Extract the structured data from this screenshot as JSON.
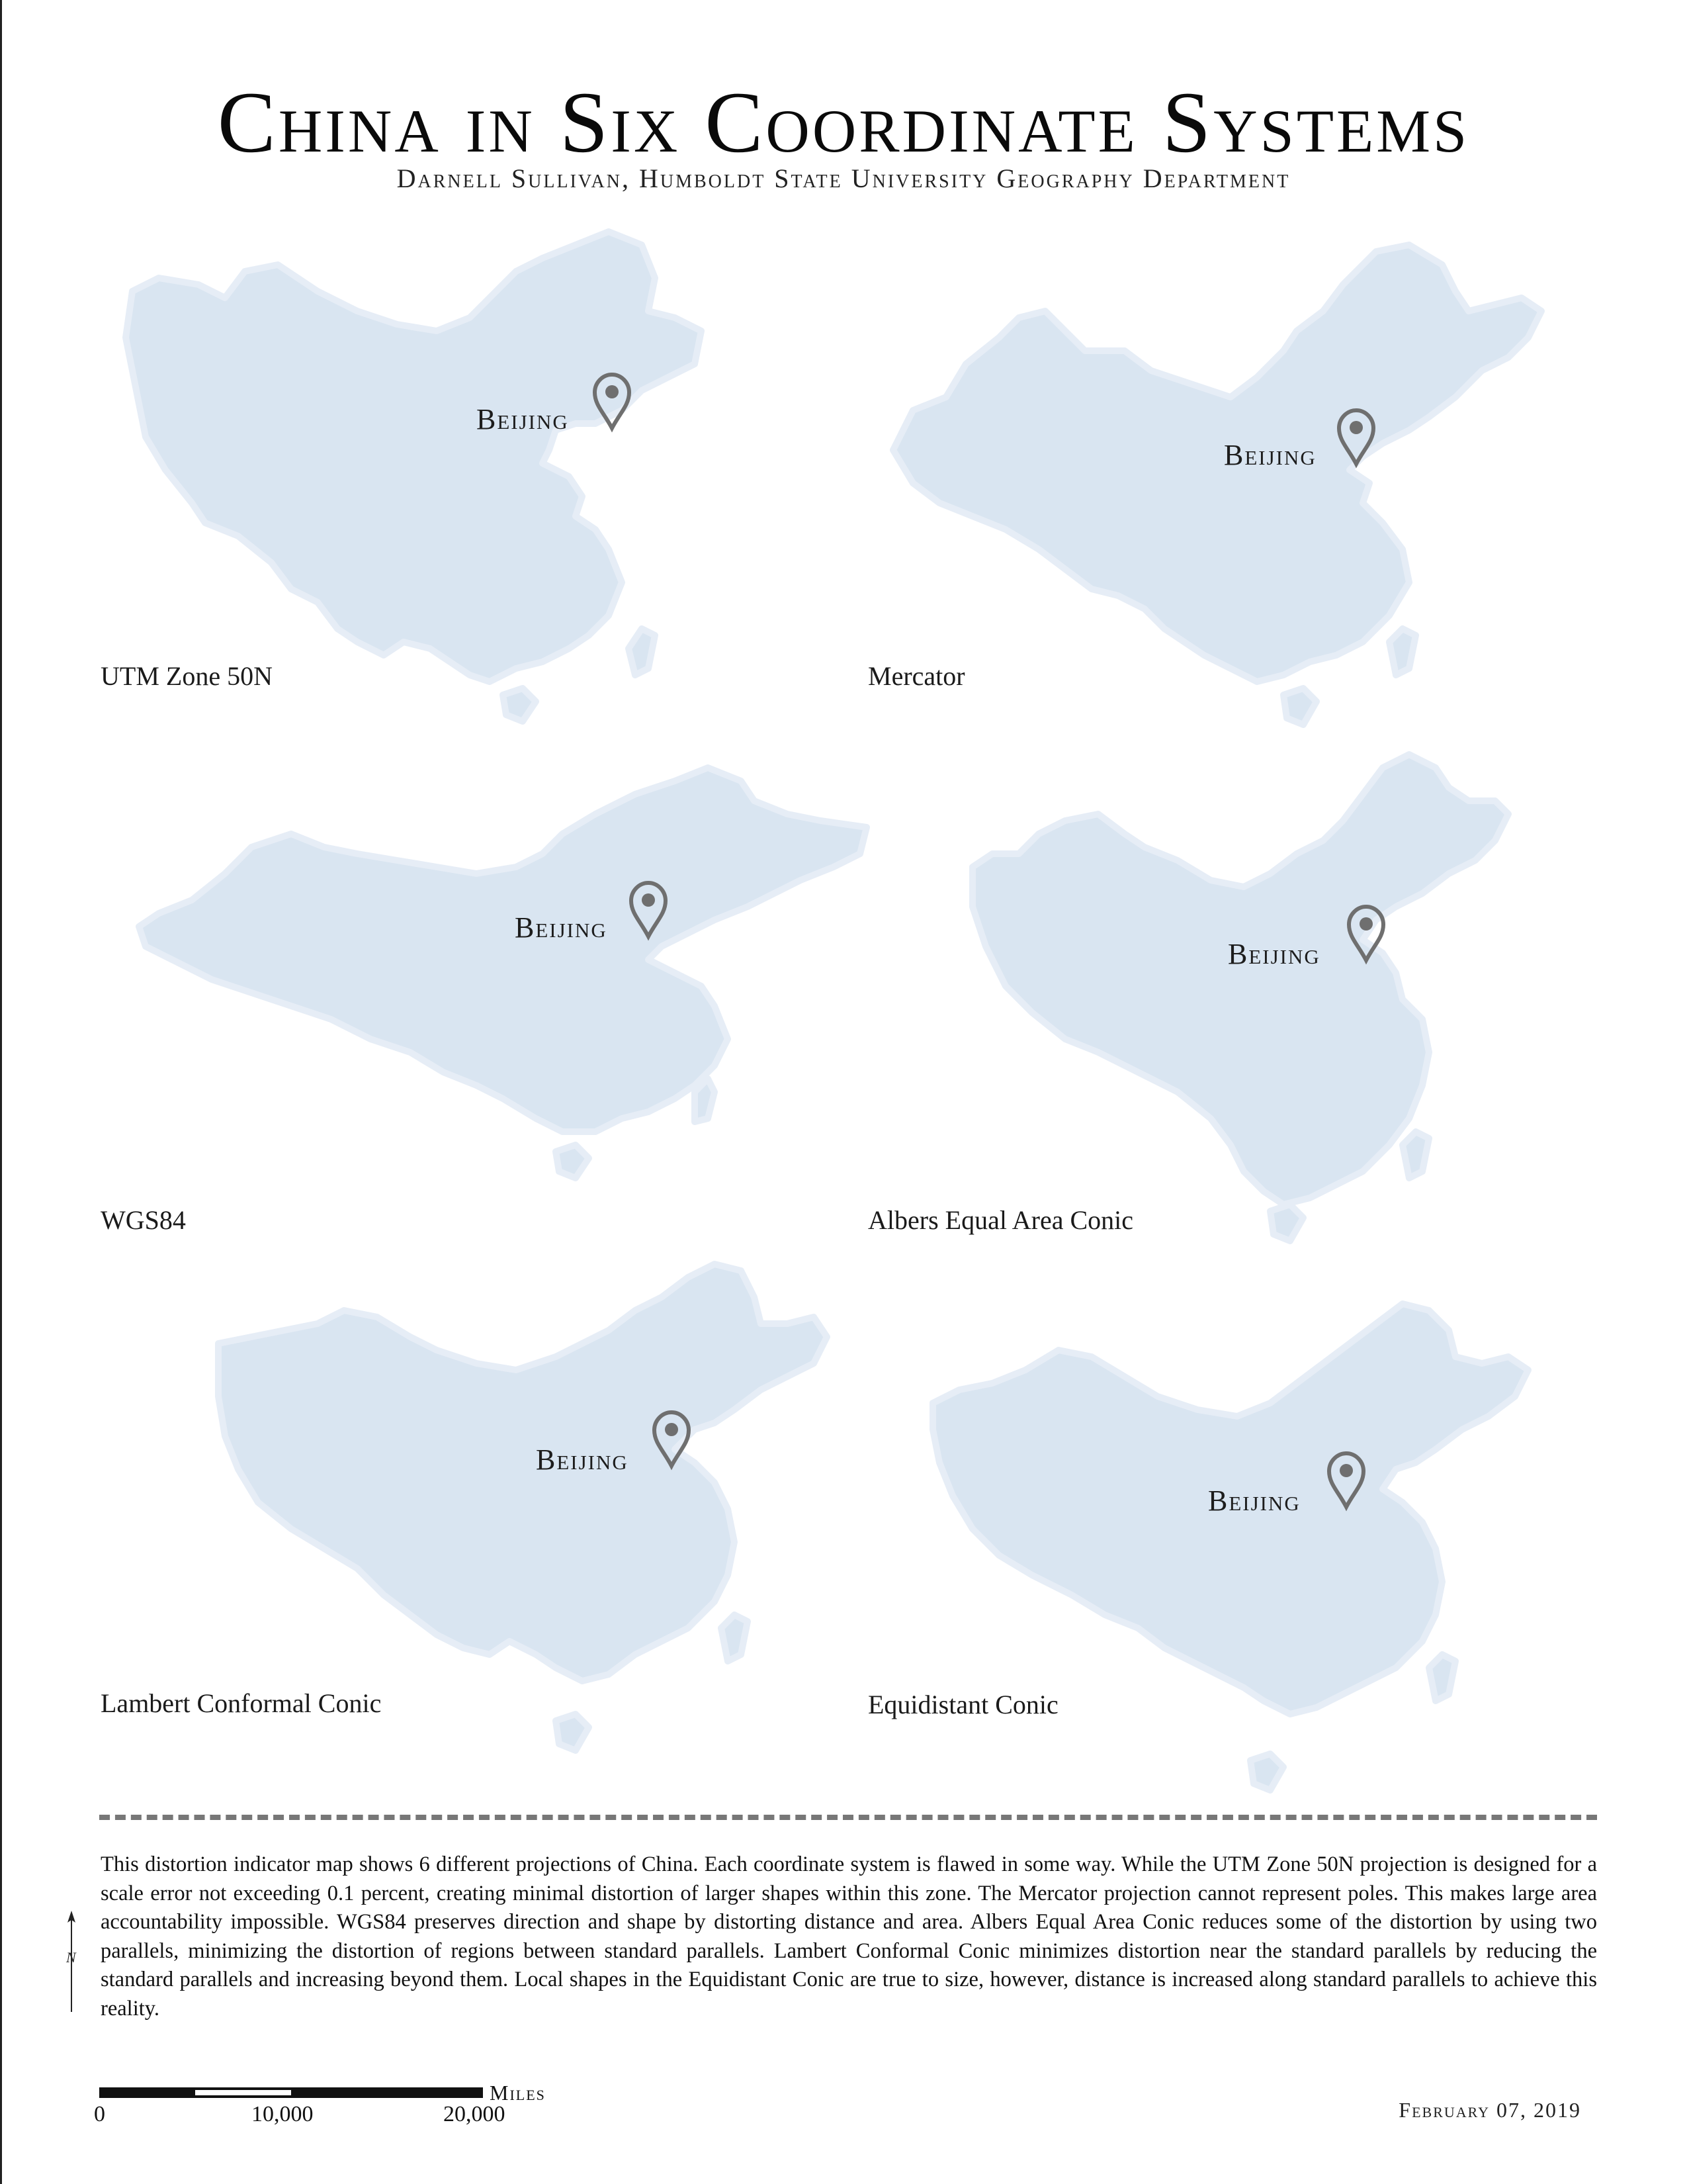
{
  "title": "China in Six Coordinate Systems",
  "subtitle": "Darnell Sullivan, Humboldt State University Geography Department",
  "map_style": {
    "land_fill": "#d9e5f1",
    "land_edge": "#e6edf6",
    "pin_color": "#6f6f6f"
  },
  "maps": [
    {
      "projection": "UTM Zone 50N",
      "city": "Beijing"
    },
    {
      "projection": "Mercator",
      "city": "Beijing"
    },
    {
      "projection": "WGS84",
      "city": "Beijing"
    },
    {
      "projection": "Albers Equal Area Conic",
      "city": "Beijing"
    },
    {
      "projection": "Lambert Conformal Conic",
      "city": "Beijing"
    },
    {
      "projection": "Equidistant Conic",
      "city": "Beijing"
    }
  ],
  "description": "This distortion indicator map shows 6 different projections of China. Each coordinate system is flawed in some way. While the UTM Zone 50N projection is designed for a scale error not exceeding 0.1 percent, creating minimal distortion of larger shapes within this zone. The Mercator projection cannot represent poles. This makes large area accountability impossible. WGS84 preserves direction and shape by distorting distance and area. Albers Equal Area Conic reduces some of the distortion by using two parallels, minimizing the distortion of regions between standard parallels. Lambert Conformal Conic minimizes distortion near the standard parallels by reducing the standard parallels and increasing beyond them. Local shapes in the Equidistant Conic are true to size, however, distance is increased along standard parallels to achieve this reality.",
  "north_arrow": {
    "icon": "north-arrow-icon",
    "letter": "N"
  },
  "scalebar": {
    "ticks": [
      "0",
      "10,000",
      "20,000"
    ],
    "unit": "Miles"
  },
  "date": "February 07, 2019"
}
